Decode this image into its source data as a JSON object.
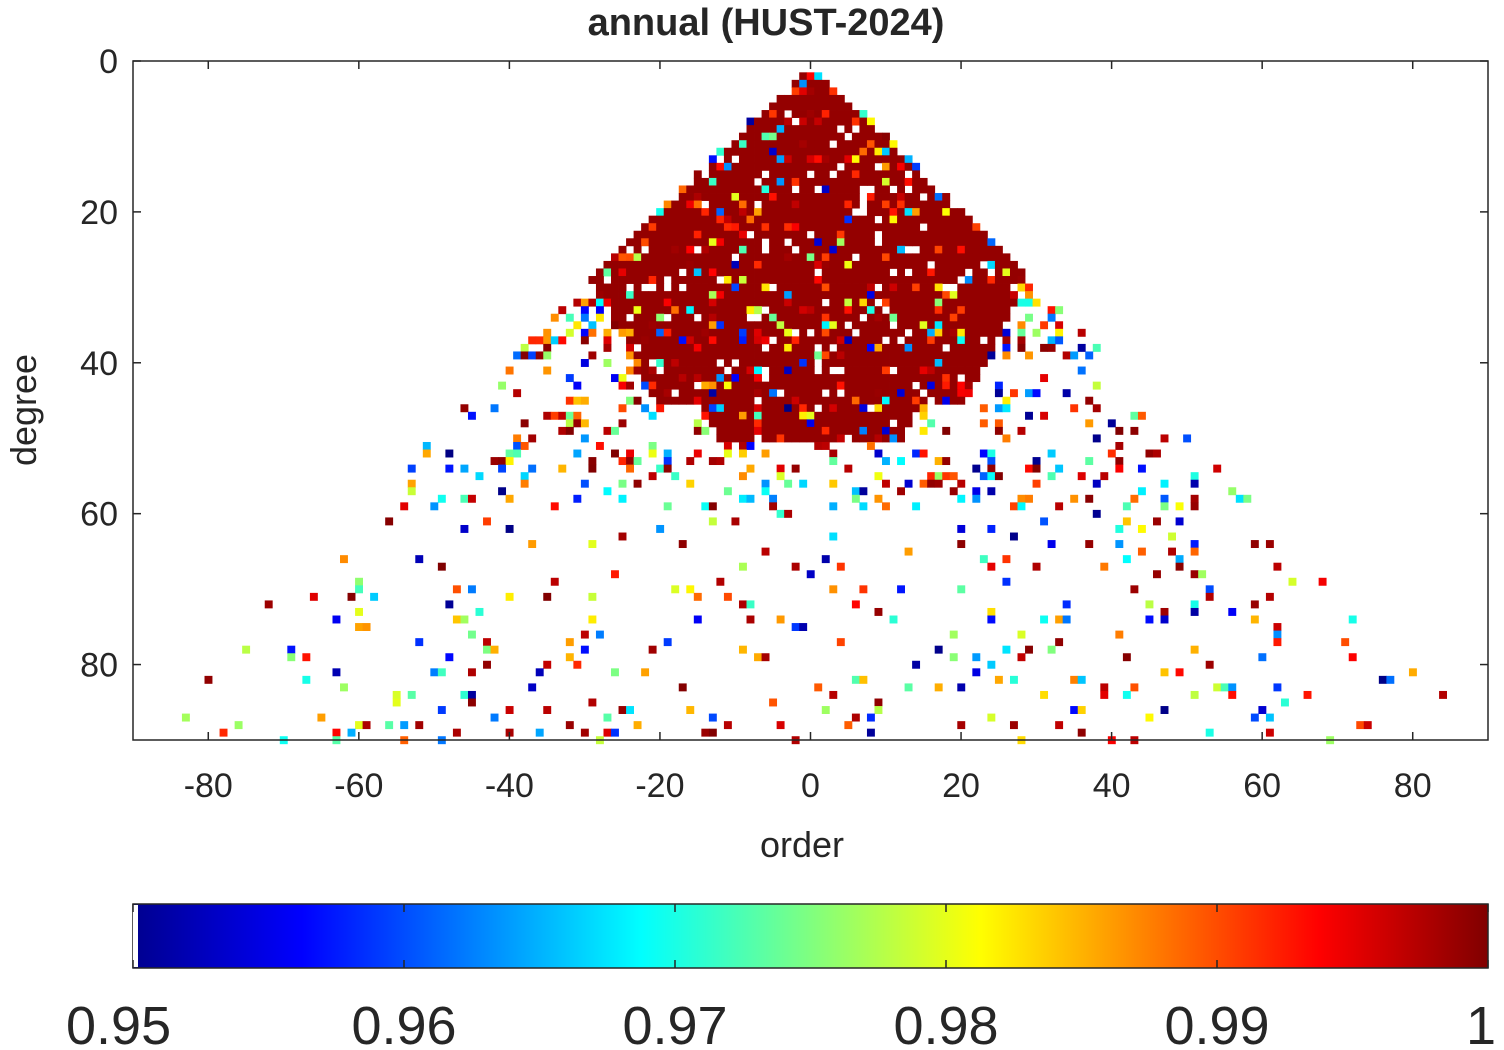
{
  "chart_data": {
    "type": "heatmap",
    "title": "annual (HUST-2024)",
    "xlabel": "order",
    "ylabel": "degree",
    "xlim": [
      -90,
      90
    ],
    "ylim": [
      0,
      90
    ],
    "y_reversed": true,
    "x_ticks": [
      "-80",
      "-60",
      "-40",
      "-20",
      "0",
      "20",
      "40",
      "60",
      "80"
    ],
    "x_tick_values": [
      -80,
      -60,
      -40,
      -20,
      0,
      20,
      40,
      60,
      80
    ],
    "y_ticks": [
      "0",
      "20",
      "40",
      "60",
      "80"
    ],
    "y_tick_values": [
      0,
      20,
      40,
      60,
      80
    ],
    "colormap": "jet",
    "color_range": [
      0.95,
      1
    ],
    "colorbar_ticks": [
      "0.95",
      "0.96",
      "0.97",
      "0.98",
      "0.99",
      "1"
    ],
    "colorbar_tick_values": [
      0.95,
      0.96,
      0.97,
      0.98,
      0.99,
      1.0
    ],
    "colorbar_location": "bottom",
    "grid": false,
    "description_values": {
      "dense_core": "values near 1 concentrated in triangle |order| <= degree, degree 2 to ~45, |order| < ~25",
      "sparse_region": "scattered values 0.95 to 1 for degree 40 to 90 across all orders"
    }
  }
}
